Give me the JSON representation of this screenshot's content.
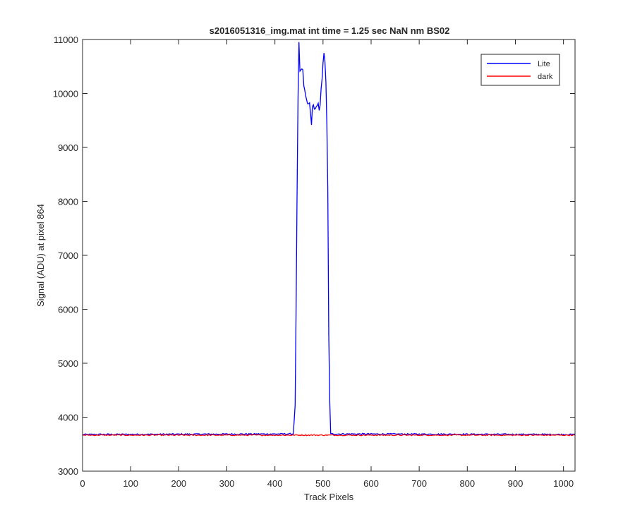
{
  "chart_data": {
    "type": "line",
    "title": "s2016051316_img.mat int time = 1.25 sec  NaN nm BS02",
    "xlabel": "Track Pixels",
    "ylabel": "Signal (ADU) at pixel 864",
    "xlim": [
      0,
      1024
    ],
    "ylim": [
      3000,
      11000
    ],
    "xticks": [
      0,
      100,
      200,
      300,
      400,
      500,
      600,
      700,
      800,
      900,
      1000
    ],
    "yticks": [
      3000,
      4000,
      5000,
      6000,
      7000,
      8000,
      9000,
      10000,
      11000
    ],
    "grid": false,
    "legend_position": "top-right",
    "series": [
      {
        "name": "Lite",
        "color": "#0000ff",
        "baseline": 3680,
        "noise": 12,
        "x": [
          0,
          438,
          442,
          445,
          447,
          449,
          450,
          452,
          455,
          458,
          460,
          462,
          465,
          467,
          469,
          471,
          474,
          476,
          478,
          480,
          483,
          485,
          487,
          489,
          492,
          494,
          496,
          498,
          500,
          502,
          504,
          506,
          508,
          510,
          512,
          515,
          1024
        ],
        "y": [
          3680,
          3690,
          4200,
          6800,
          9300,
          10500,
          10930,
          10400,
          10460,
          10420,
          10150,
          10050,
          9900,
          9850,
          9760,
          9900,
          9620,
          9440,
          9750,
          9800,
          9640,
          9770,
          9700,
          9850,
          9700,
          9800,
          10100,
          10250,
          10550,
          10760,
          10600,
          10200,
          9400,
          8200,
          5500,
          3690,
          3680
        ]
      },
      {
        "name": "dark",
        "color": "#ff0000",
        "baseline": 3668,
        "noise": 10,
        "x": [
          0,
          1024
        ],
        "y": [
          3668,
          3668
        ]
      }
    ]
  }
}
